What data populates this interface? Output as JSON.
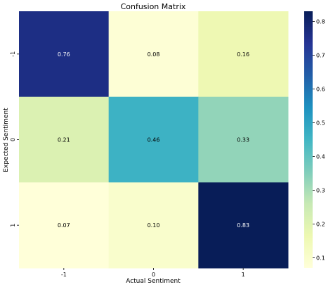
{
  "chart_data": {
    "type": "heatmap",
    "title": "Confusion Matrix",
    "xlabel": "Actual Sentiment",
    "ylabel": "Expected Sentiment",
    "x_categories": [
      "-1",
      "0",
      "1"
    ],
    "y_categories": [
      "-1",
      "0",
      "1"
    ],
    "values": [
      [
        0.76,
        0.08,
        0.16
      ],
      [
        0.21,
        0.46,
        0.33
      ],
      [
        0.07,
        0.1,
        0.83
      ]
    ],
    "cell_labels": [
      [
        "0.76",
        "0.08",
        "0.16"
      ],
      [
        "0.21",
        "0.46",
        "0.33"
      ],
      [
        "0.07",
        "0.10",
        "0.83"
      ]
    ],
    "colormap": "YlGnBu",
    "colorbar": {
      "range": [
        0.07,
        0.83
      ],
      "ticks": [
        0.1,
        0.2,
        0.3,
        0.4,
        0.5,
        0.6,
        0.7,
        0.8
      ],
      "tick_labels": [
        "0.1",
        "0.2",
        "0.3",
        "0.4",
        "0.5",
        "0.6",
        "0.7",
        "0.8"
      ]
    },
    "grid": false
  }
}
